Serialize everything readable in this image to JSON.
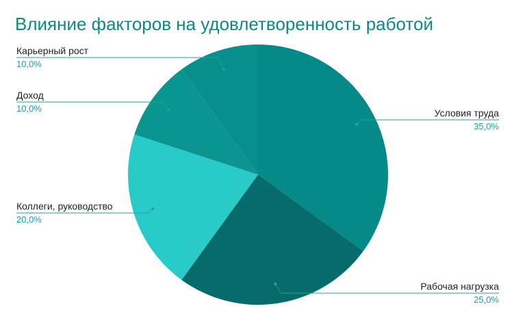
{
  "chart_data": {
    "type": "pie",
    "title": "Влияние факторов на удовлетворенность работой",
    "slices": [
      {
        "label": "Условия труда",
        "value": 35.0,
        "value_text": "35,0%",
        "color": "#068a88"
      },
      {
        "label": "Рабочая нагрузка",
        "value": 25.0,
        "value_text": "25,0%",
        "color": "#066b6a"
      },
      {
        "label": "Коллеги, руководство",
        "value": 20.0,
        "value_text": "20,0%",
        "color": "#29cbc8"
      },
      {
        "label": "Доход",
        "value": 10.0,
        "value_text": "10,0%",
        "color": "#0b9590"
      },
      {
        "label": "Карьерный рост",
        "value": 10.0,
        "value_text": "10,0%",
        "color": "#088f8c"
      }
    ],
    "leader_line_color": "#1aa39c"
  }
}
